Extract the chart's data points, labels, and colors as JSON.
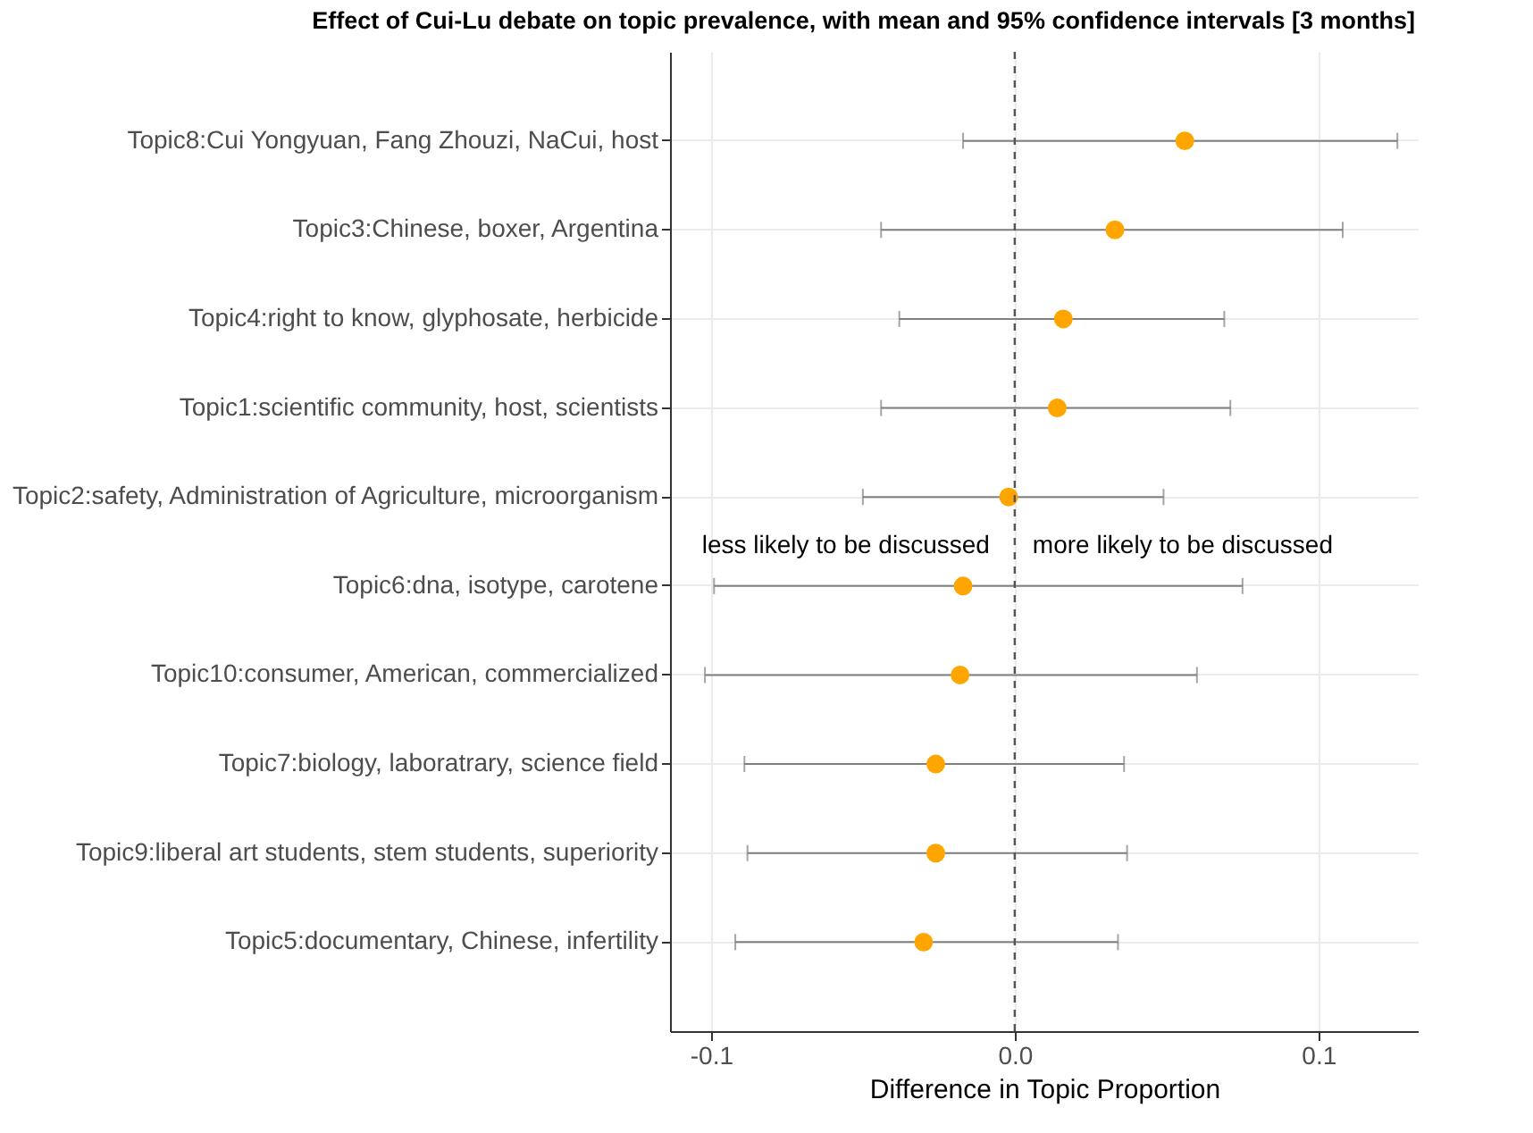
{
  "chart_data": {
    "type": "scatter",
    "orientation": "horizontal",
    "title": "Effect of Cui-Lu debate on topic prevalence, with mean and 95% confidence intervals [3 months]",
    "xlabel": "Difference in Topic Proportion",
    "categories": [
      "Topic8:Cui Yongyuan, Fang Zhouzi, NaCui, host",
      "Topic3:Chinese, boxer, Argentina",
      "Topic4:right to know, glyphosate, herbicide",
      "Topic1:scientific community, host, scientists",
      "Topic2:safety, Administration of Agriculture, microorganism",
      "Topic6:dna, isotype, carotene",
      "Topic10:consumer, American, commercialized",
      "Topic7:biology, laboratrary, science field",
      "Topic9:liberal art students, stem students, superiority",
      "Topic5:documentary, Chinese, infertility"
    ],
    "values": [
      0.056,
      0.033,
      0.016,
      0.014,
      -0.002,
      -0.017,
      -0.018,
      -0.026,
      -0.026,
      -0.03
    ],
    "errors": [
      [
        -0.017,
        0.126
      ],
      [
        -0.044,
        0.108
      ],
      [
        -0.038,
        0.069
      ],
      [
        -0.044,
        0.071
      ],
      [
        -0.05,
        0.049
      ],
      [
        -0.099,
        0.075
      ],
      [
        -0.102,
        0.06
      ],
      [
        -0.089,
        0.036
      ],
      [
        -0.088,
        0.037
      ],
      [
        -0.092,
        0.034
      ]
    ],
    "color": "#ffa500",
    "marker": "circle",
    "xlim": [
      -0.1135,
      0.133
    ],
    "xticks": [
      -0.1,
      {
        "value": 0,
        "label": "0.0"
      },
      0.1
    ],
    "ref_lines": [
      {
        "axis": "x",
        "value": 0,
        "line_style": "dashed",
        "color": "#555555"
      }
    ],
    "annotations": [
      "less likely to be discussed",
      "more likely to be discussed"
    ],
    "grid": true
  }
}
